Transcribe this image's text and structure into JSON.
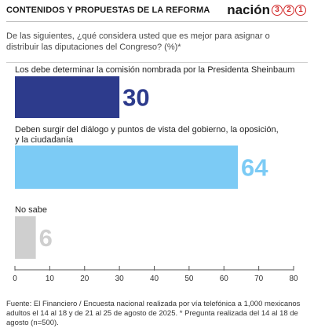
{
  "header": {
    "title": "CONTENIDOS Y PROPUESTAS DE LA REFORMA",
    "brand_word": "nación",
    "brand_digits": [
      "3",
      "2",
      "1"
    ]
  },
  "question": "De las siguientes, ¿qué considera usted que es mejor para asignar o distribuir las diputaciones del Congreso? (%)*",
  "footer": "Fuente: El Financiero / Encuesta nacional realizada por vía telefónica a 1,000 mexicanos adultos el 14 al 18 y de 21 al 25 de agosto de 2025. * Pregunta realizada del 14 al 18 de agosto (n=500).",
  "colors": {
    "bar_1": "#2d3b8c",
    "bar_2": "#7ccbf5",
    "bar_3": "#cfcfcf",
    "brand_accent": "#d22a2a"
  },
  "chart_data": {
    "type": "bar",
    "orientation": "horizontal",
    "categories": [
      "Los debe determinar la comisión nombrada por la Presidenta Sheinbaum",
      "Deben surgir del diálogo y puntos de vista del gobierno, la oposición, y la ciudadanía",
      "No sabe"
    ],
    "values": [
      30,
      64,
      6
    ],
    "value_labels": [
      "30",
      "64",
      "6"
    ],
    "xlim": [
      0,
      80
    ],
    "xticks": [
      0,
      10,
      20,
      30,
      40,
      50,
      60,
      70,
      80
    ],
    "grid": false,
    "legend": "none"
  }
}
